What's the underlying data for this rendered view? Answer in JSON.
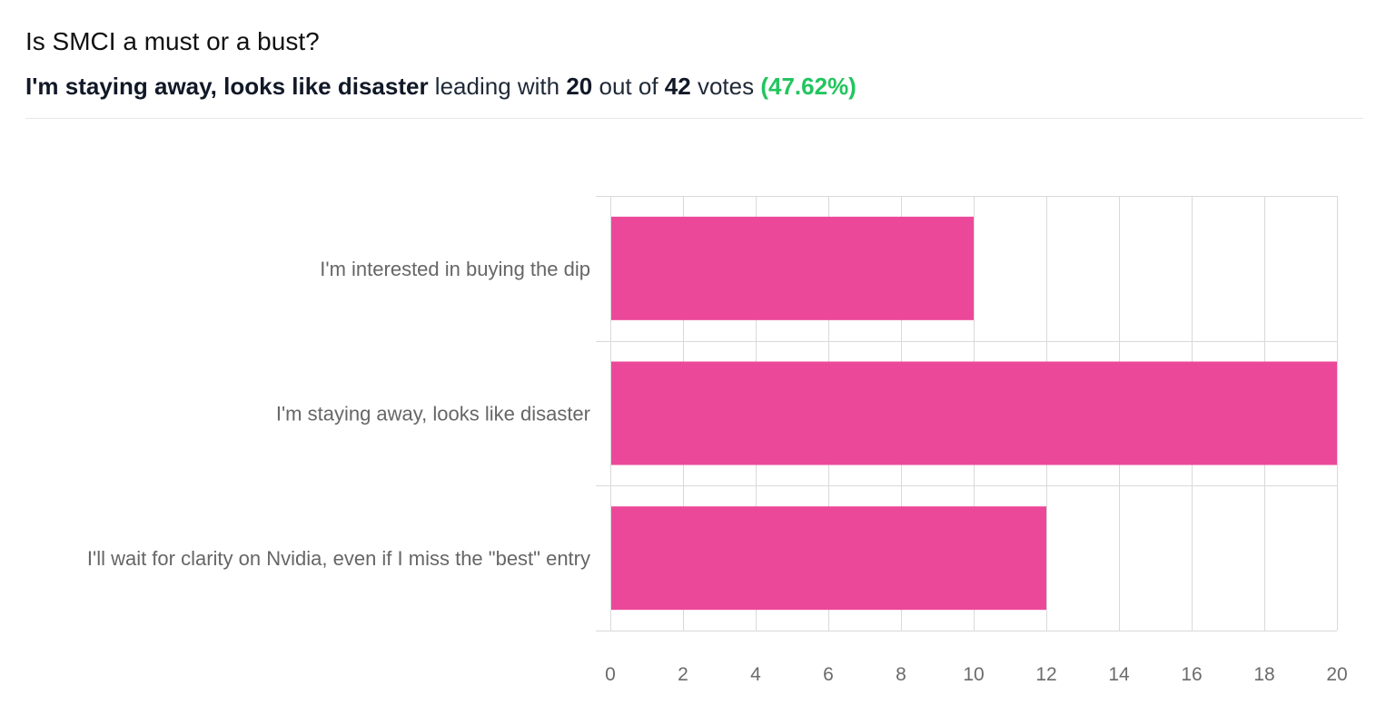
{
  "poll": {
    "question": "Is SMCI a must or a bust?",
    "leader": "I'm staying away, looks like disaster",
    "text_leading_with": "leading with",
    "leader_votes": "20",
    "text_out_of": "out of",
    "total_votes": "42",
    "text_votes": "votes",
    "leader_percent": "(47.62%)"
  },
  "colors": {
    "bar": "#ec4899",
    "percent": "#22c55e",
    "grid": "#d9d9d9"
  },
  "chart_data": {
    "type": "bar",
    "orientation": "horizontal",
    "categories": [
      "I'm interested in buying the dip",
      "I'm staying away, looks like disaster",
      "I'll wait for clarity on Nvidia, even if I miss the \"best\" entry"
    ],
    "values": [
      10,
      20,
      12
    ],
    "xlim": [
      0,
      20
    ],
    "xticks": [
      0,
      2,
      4,
      6,
      8,
      10,
      12,
      14,
      16,
      18,
      20
    ],
    "grid": true
  }
}
